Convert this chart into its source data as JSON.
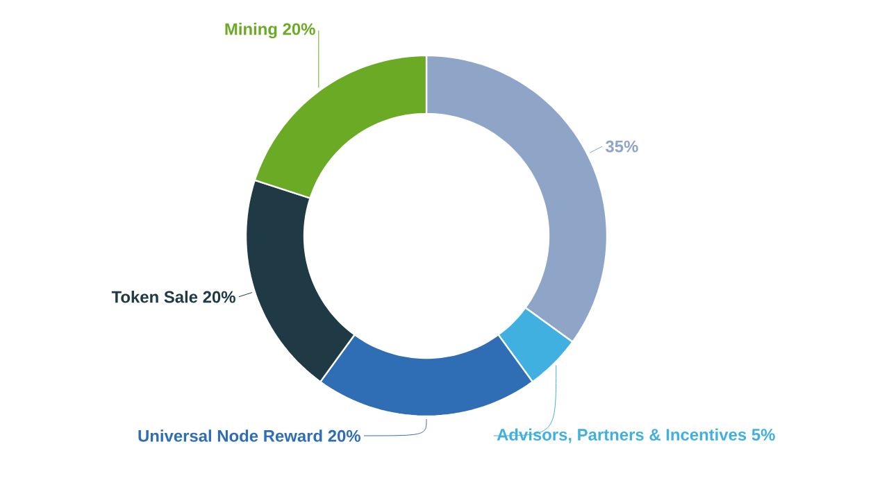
{
  "chart_data": {
    "type": "donut",
    "categories": [
      null,
      "Advisors, Partners & Incentives",
      "Universal Node Reward",
      "Token Sale",
      "Mining"
    ],
    "values": [
      35,
      5,
      20,
      20,
      20
    ],
    "value_labels": [
      "35%",
      "5%",
      "20%",
      "20%",
      "20%"
    ],
    "colors": [
      "#8fa5c8",
      "#3fb0e0",
      "#2f6db5",
      "#1f3a44",
      "#6aaa24"
    ]
  }
}
